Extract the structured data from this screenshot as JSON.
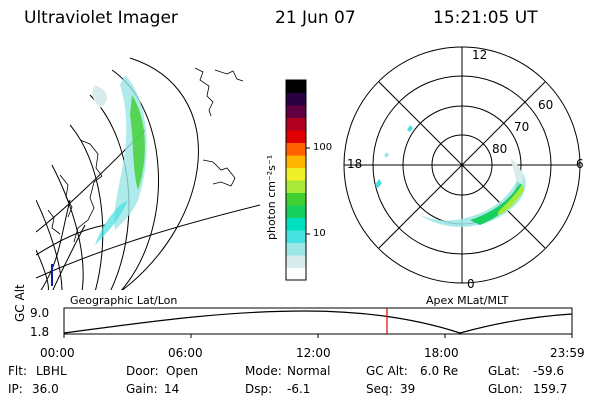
{
  "header": {
    "instrument": "Ultraviolet Imager",
    "date": "21 Jun 07",
    "time": "15:21:05 UT"
  },
  "colorbar": {
    "unit_label": "photon cm⁻²s⁻¹",
    "ticks": [
      "100",
      "10"
    ],
    "scale": "log",
    "colors": [
      "#ffffff",
      "#d8ecec",
      "#9ce6e6",
      "#46e0e0",
      "#00e0c0",
      "#18d060",
      "#40d030",
      "#a8e838",
      "#f0f028",
      "#ffb400",
      "#ff6000",
      "#e00000",
      "#b00020",
      "#600040",
      "#2a0040",
      "#000000"
    ]
  },
  "polar_plot": {
    "lat_labels": [
      "60",
      "70",
      "80"
    ],
    "mlt_labels": {
      "top": "12",
      "left": "18",
      "right": "6",
      "bottom": "0"
    }
  },
  "altitude_panel": {
    "left_caption": "Geographic Lat/Lon",
    "right_caption": "Apex MLat/MLT",
    "axis_title": "GC Alt",
    "y_ticks": [
      "9.0",
      "1.8"
    ],
    "x_ticks": [
      "00:00",
      "06:00",
      "12:00",
      "18:00",
      "23:59"
    ],
    "current_time_color": "#e00000"
  },
  "footer": {
    "row1": [
      {
        "key": "Flt:",
        "value": "LBHL"
      },
      {
        "key": "Door:",
        "value": "Open"
      },
      {
        "key": "Mode:",
        "value": "Normal"
      },
      {
        "key": "GC Alt:",
        "value": "6.0 Re"
      },
      {
        "key": "GLat:",
        "value": "-59.6"
      }
    ],
    "row2": [
      {
        "key": "IP:",
        "value": "36.0"
      },
      {
        "key": "Gain:",
        "value": "14"
      },
      {
        "key": "Dsp:",
        "value": "-6.1"
      },
      {
        "key": "Seq:",
        "value": "39"
      },
      {
        "key": "GLon:",
        "value": "159.7"
      }
    ]
  }
}
